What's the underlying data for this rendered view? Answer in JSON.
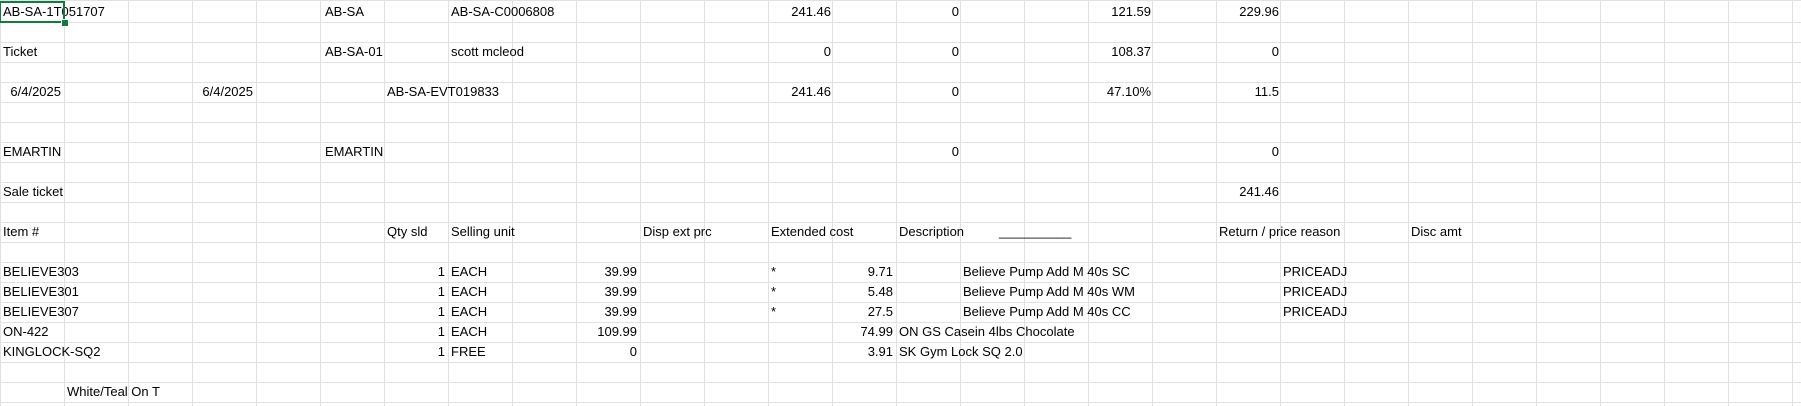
{
  "cells": {
    "r1": {
      "a": "AB-SA-1T051707",
      "f": "AB-SA",
      "h": "AB-SA-C0006808",
      "k": "241.46",
      "m": "0",
      "o": "121.59",
      "q": "229.96"
    },
    "r2": {
      "a": "Ticket",
      "f": "AB-SA-01",
      "h": "scott mcleod",
      "k": "0",
      "m": "0",
      "o": "108.37",
      "q": "0"
    },
    "r3": {
      "a": "6/4/2025",
      "d": "6/4/2025",
      "g": "AB-SA-EVT019833",
      "k": "241.46",
      "m": "0",
      "o": "47.10%",
      "q": "11.5"
    },
    "r5": {
      "a": "EMARTIN",
      "f": "EMARTIN",
      "m": "0",
      "q": "0"
    },
    "r6": {
      "a": "Sale ticket",
      "q": "241.46"
    },
    "r7": {
      "a": "Item #",
      "g": "Qty sld",
      "h": "Selling unit",
      "j": "Disp ext prc",
      "l": "Extended cost",
      "n": "Description",
      "n_underline": "__________",
      "q": "Return / price reason",
      "s": "Disc amt"
    }
  },
  "items": [
    {
      "item": "BELIEVE303",
      "qty": "1",
      "unit": "EACH",
      "price": "39.99",
      "flag": "*",
      "cost": "9.71",
      "desc": "Believe Pump Add M 40s SC",
      "reason": "PRICEADJ"
    },
    {
      "item": "BELIEVE301",
      "qty": "1",
      "unit": "EACH",
      "price": "39.99",
      "flag": "*",
      "cost": "5.48",
      "desc": "Believe Pump Add M 40s WM",
      "reason": "PRICEADJ"
    },
    {
      "item": "BELIEVE307",
      "qty": "1",
      "unit": "EACH",
      "price": "39.99",
      "flag": "*",
      "cost": "27.5",
      "desc": "Believe Pump Add M 40s CC",
      "reason": "PRICEADJ"
    },
    {
      "item": "ON-422",
      "qty": "1",
      "unit": "EACH",
      "price": "109.99",
      "flag": "",
      "cost": "74.99",
      "desc": "ON GS Casein 4lbs Chocolate",
      "reason": ""
    },
    {
      "item": "KINGLOCK-SQ2",
      "qty": "1",
      "unit": "FREE",
      "price": "0",
      "flag": "",
      "cost": "3.91",
      "desc": "SK Gym Lock SQ 2.0",
      "reason": ""
    }
  ],
  "footer": {
    "note": "White/Teal On T"
  },
  "colors": {
    "gridline": "#e1e1e1",
    "selection": "#107c41"
  }
}
